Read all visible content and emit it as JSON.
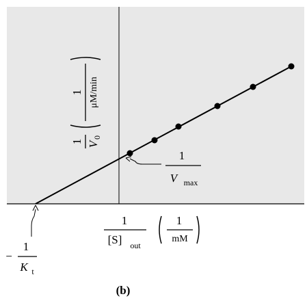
{
  "chart_data": {
    "type": "scatter",
    "x": [
      1.6,
      5.2,
      8.7,
      14.4,
      19.6,
      25.2
    ],
    "series": [
      {
        "values": [
          7.4,
          9.3,
          11.3,
          14.3,
          17.1,
          20.1
        ],
        "color": "#000000"
      }
    ],
    "fit_line": {
      "x": [
        -12.2,
        25.2
      ],
      "y": [
        0,
        20.1
      ]
    },
    "xlim": [
      -16.4,
      27.1
    ],
    "ylim": [
      0,
      28.8
    ],
    "background": "#e8e8e8",
    "y_label": {
      "numerator": "1",
      "denominator": "V",
      "denominator_sub": "0",
      "unit_numerator": "1",
      "unit_denominator": "μM/min"
    },
    "x_label": {
      "numerator": "1",
      "denominator": "[S]",
      "denominator_sub": "out",
      "unit_numerator": "1",
      "unit_denominator": "mM"
    },
    "y_intercept_label": {
      "numerator": "1",
      "denominator": "V",
      "denominator_sub": "max"
    },
    "x_intercept_label": {
      "sign": "−",
      "numerator": "1",
      "denominator": "K",
      "denominator_sub": "t"
    },
    "caption": "(b)"
  }
}
